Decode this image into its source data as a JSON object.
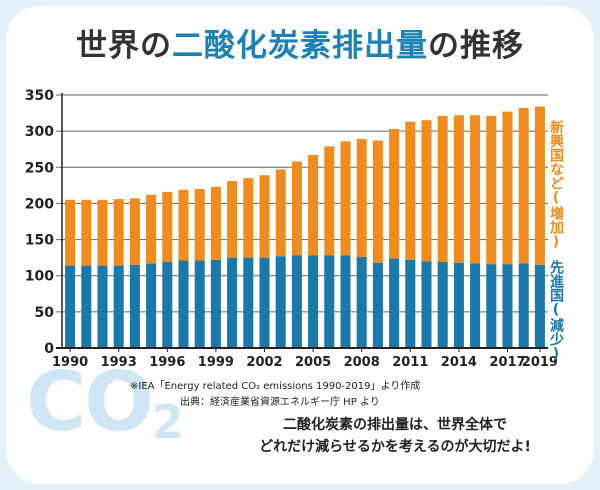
{
  "title": {
    "part1": "世界の",
    "part2": "二酸化炭素排出量",
    "part3": "の推移"
  },
  "colors": {
    "emerging": "#f08c1e",
    "developed": "#1a78aa",
    "title_highlight": "#1a82b4",
    "background": "#e5f1f9"
  },
  "labels": {
    "emerging": "新興国など(増加)",
    "developed": "先進国(減少)"
  },
  "source": {
    "line1": "※IEA「Energy related CO₂ emissions 1990-2019」より作成",
    "line2": "出典：経済産業省資源エネルギー庁 HP より"
  },
  "watermark": {
    "text": "CO",
    "sub": "2"
  },
  "message": {
    "line1": "二酸化炭素の排出量は、世界全体で",
    "line2": "どれだけ減らせるかを考えるのが大切だよ!"
  },
  "chart_data": {
    "type": "bar",
    "stacked": true,
    "categories": [
      "1990",
      "1991",
      "1992",
      "1993",
      "1994",
      "1995",
      "1996",
      "1997",
      "1998",
      "1999",
      "2000",
      "2001",
      "2002",
      "2003",
      "2004",
      "2005",
      "2006",
      "2007",
      "2008",
      "2009",
      "2010",
      "2011",
      "2012",
      "2013",
      "2014",
      "2015",
      "2016",
      "2017",
      "2018",
      "2019"
    ],
    "x_tick_labels": [
      "1990",
      "1993",
      "1996",
      "1999",
      "2002",
      "2005",
      "2008",
      "2011",
      "2014",
      "2017",
      "2019"
    ],
    "y_ticks": [
      0,
      50,
      100,
      150,
      200,
      250,
      300,
      350
    ],
    "ylim": [
      0,
      350
    ],
    "grid": true,
    "series": [
      {
        "name": "先進国(減少)",
        "color": "#1a78aa",
        "values": [
          114,
          114,
          114,
          114,
          115,
          117,
          119,
          121,
          121,
          122,
          125,
          125,
          125,
          127,
          128,
          128,
          128,
          128,
          126,
          118,
          124,
          122,
          120,
          119,
          118,
          117,
          116,
          116,
          117,
          115
        ]
      },
      {
        "name": "新興国など(増加)",
        "color": "#f08c1e",
        "values": [
          91,
          91,
          91,
          92,
          92,
          95,
          97,
          98,
          99,
          101,
          106,
          110,
          114,
          120,
          130,
          139,
          151,
          158,
          163,
          169,
          179,
          191,
          195,
          202,
          204,
          205,
          205,
          211,
          215,
          219
        ]
      }
    ]
  }
}
